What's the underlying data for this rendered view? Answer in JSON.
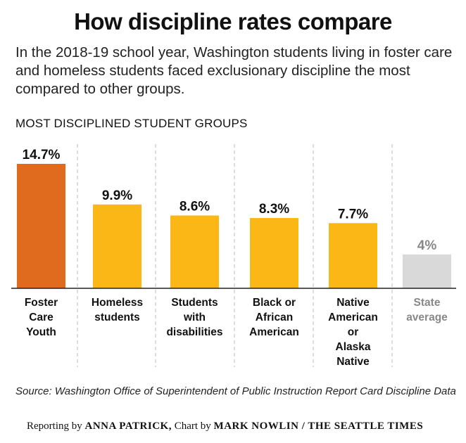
{
  "title": "How discipline rates compare",
  "subtitle": "In the 2018-19 school year, Washington students living in foster care and homeless students faced exclusionary discipline the most compared to other groups.",
  "section_label": "MOST DISCIPLINED STUDENT GROUPS",
  "source": "Source: Washington Office of Superintendent of Public Instruction Report Card Discipline Data",
  "credit": {
    "reporting_prefix": "Reporting by ",
    "reporter": "ANNA PATRICK,",
    "chart_prefix": " Chart by ",
    "chart_author": "MARK NOWLIN / THE SEATTLE TIMES"
  },
  "chart_data": {
    "type": "bar",
    "categories": [
      [
        "Foster",
        "Care",
        "Youth"
      ],
      [
        "Homeless",
        "students"
      ],
      [
        "Students",
        "with",
        "disabilities"
      ],
      [
        "Black or",
        "African",
        "American"
      ],
      [
        "Native",
        "American",
        "or",
        "Alaska",
        "Native"
      ],
      [
        "State",
        "average"
      ]
    ],
    "values": [
      14.7,
      9.9,
      8.6,
      8.3,
      7.7,
      4
    ],
    "value_labels": [
      "14.7%",
      "9.9%",
      "8.6%",
      "8.3%",
      "7.7%",
      "4%"
    ],
    "unit": "%",
    "colors": [
      "#e06a1e",
      "#fbb715",
      "#fbb715",
      "#fbb715",
      "#fbb715",
      "#d9d9d9"
    ],
    "label_colors": [
      "#111111",
      "#111111",
      "#111111",
      "#111111",
      "#111111",
      "#888888"
    ],
    "ylim": [
      0,
      14.7
    ],
    "grid": "dashed vertical separators",
    "legend": "none"
  }
}
